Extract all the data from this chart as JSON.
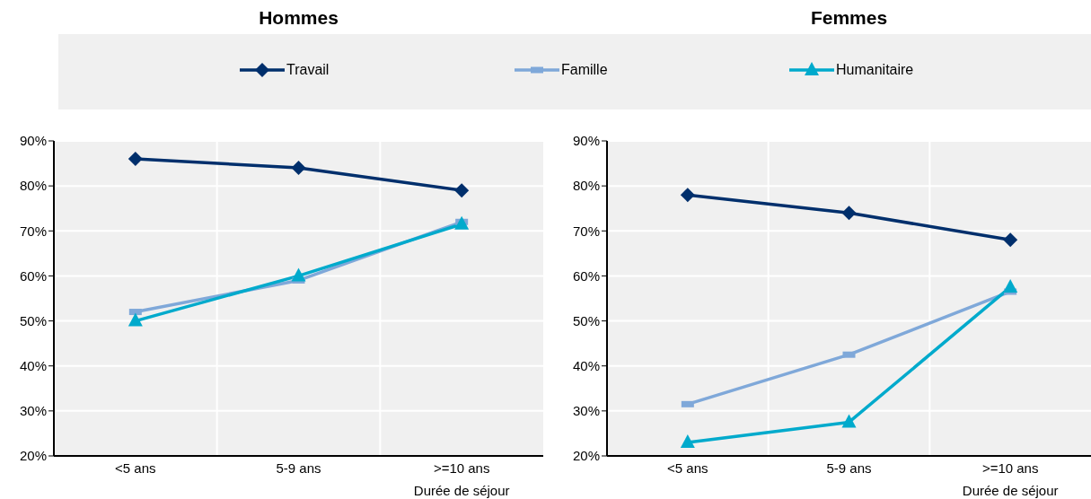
{
  "chart_data": [
    {
      "type": "line",
      "title": "Hommes",
      "xlabel": "Durée de séjour",
      "categories": [
        "<5 ans",
        "5-9 ans",
        ">=10 ans"
      ],
      "series": [
        {
          "name": "Travail",
          "color": "#002f6c",
          "marker": "diamond",
          "values": [
            86,
            84,
            79
          ]
        },
        {
          "name": "Famille",
          "color": "#7fa8d9",
          "marker": "square",
          "values": [
            52,
            59,
            72
          ]
        },
        {
          "name": "Humanitaire",
          "color": "#00aacc",
          "marker": "triangle",
          "values": [
            50,
            60,
            71.5
          ]
        }
      ],
      "ylim": [
        20,
        90
      ],
      "yticks": [
        {
          "value": 20,
          "label": "20%"
        },
        {
          "value": 30,
          "label": "30%"
        },
        {
          "value": 40,
          "label": "40%"
        },
        {
          "value": 50,
          "label": "50%"
        },
        {
          "value": 60,
          "label": "60%"
        },
        {
          "value": 70,
          "label": "70%"
        },
        {
          "value": 80,
          "label": "80%"
        },
        {
          "value": 90,
          "label": "90%"
        }
      ],
      "grid": true,
      "legend": "top",
      "line_style": "solid"
    },
    {
      "type": "line",
      "title": "Femmes",
      "xlabel": "Durée de séjour",
      "categories": [
        "<5 ans",
        "5-9 ans",
        ">=10 ans"
      ],
      "series": [
        {
          "name": "Travail",
          "color": "#002f6c",
          "marker": "diamond",
          "values": [
            78,
            74,
            68
          ]
        },
        {
          "name": "Famille",
          "color": "#7fa8d9",
          "marker": "square",
          "values": [
            31.5,
            42.5,
            56.5
          ]
        },
        {
          "name": "Humanitaire",
          "color": "#00aacc",
          "marker": "triangle",
          "values": [
            23,
            27.5,
            57.5
          ]
        }
      ],
      "ylim": [
        20,
        90
      ],
      "yticks": [
        {
          "value": 20,
          "label": "20%"
        },
        {
          "value": 30,
          "label": "30%"
        },
        {
          "value": 40,
          "label": "40%"
        },
        {
          "value": 50,
          "label": "50%"
        },
        {
          "value": 60,
          "label": "60%"
        },
        {
          "value": 70,
          "label": "70%"
        },
        {
          "value": 80,
          "label": "80%"
        },
        {
          "value": 90,
          "label": "90%"
        }
      ],
      "grid": true,
      "legend": "top",
      "line_style": "solid"
    }
  ]
}
